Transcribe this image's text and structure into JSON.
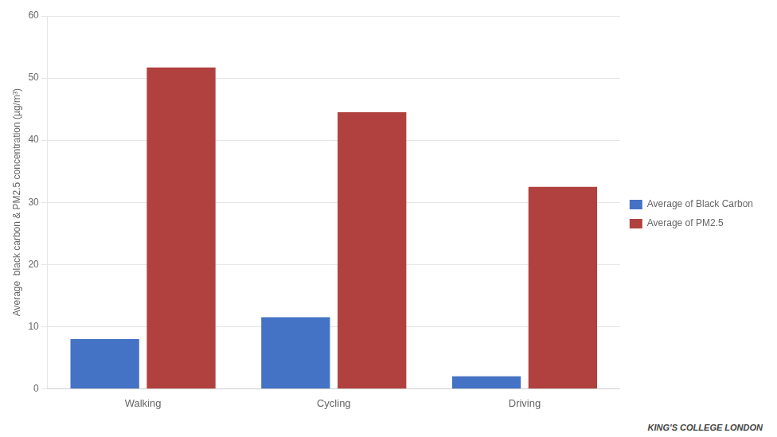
{
  "chart_data": {
    "type": "bar",
    "categories": [
      "Walking",
      "Cycling",
      "Driving"
    ],
    "series": [
      {
        "name": "Average of Black Carbon",
        "color": "#4472C4",
        "values": [
          8.0,
          11.5,
          2.0
        ]
      },
      {
        "name": "Average of PM2.5",
        "color": "#B0413E",
        "values": [
          51.7,
          44.5,
          32.5
        ]
      }
    ],
    "ylabel": "Average  black carbon & PM2.5 concentration (µg/m³)",
    "ylim": [
      0,
      60
    ],
    "yticks": [
      0,
      10,
      20,
      30,
      40,
      50,
      60
    ],
    "grid": true,
    "legend": "right",
    "annotation": "KING'S COLLEGE LONDON"
  }
}
